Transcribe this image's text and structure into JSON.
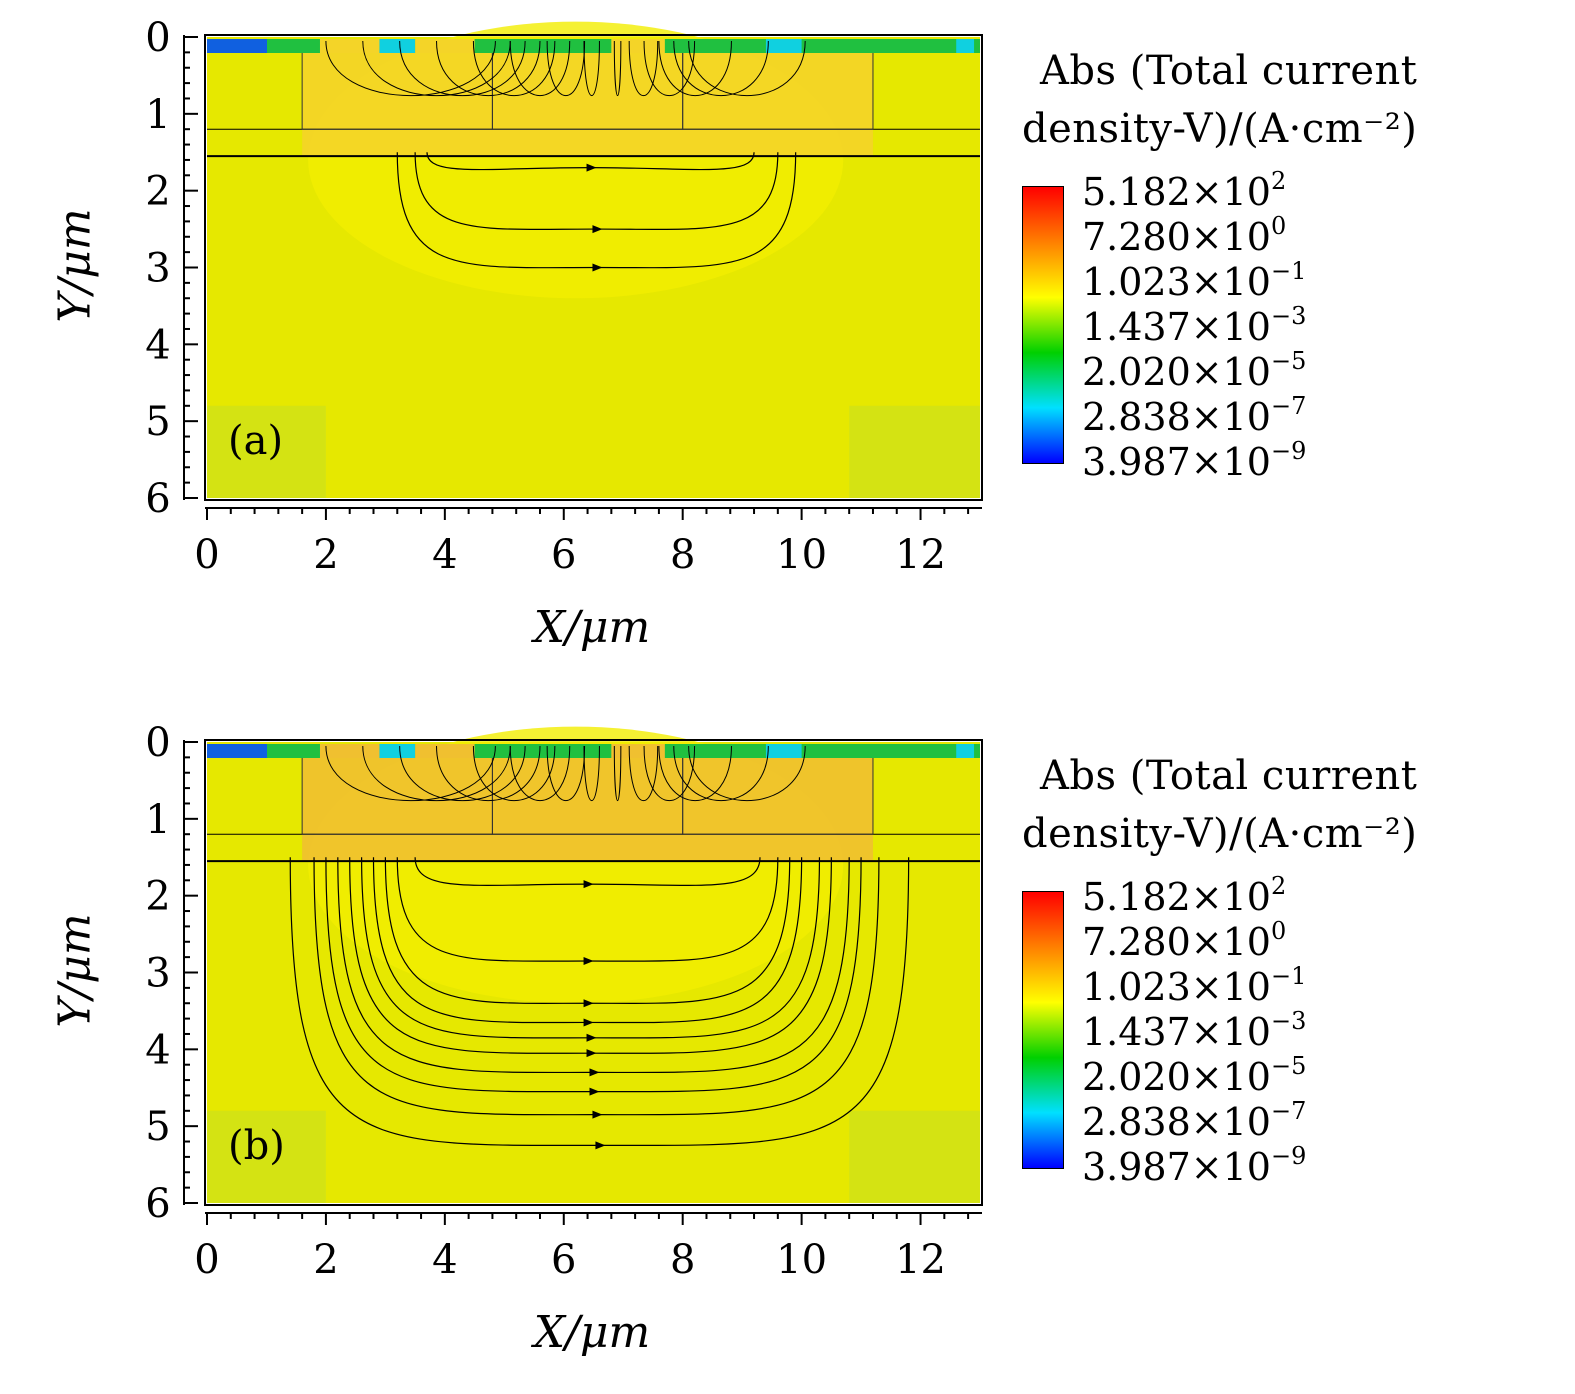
{
  "colorbar": {
    "title_line1": "Abs (Total current",
    "title_line2": "density-V)/(A·cm⁻²)",
    "colors": [
      "#ff0000",
      "#ff8000",
      "#ffff00",
      "#00d000",
      "#00e0ff",
      "#0000ff"
    ],
    "labels": [
      {
        "mantissa": "5.182×10",
        "exp": "2"
      },
      {
        "mantissa": "7.280×10",
        "exp": "0"
      },
      {
        "mantissa": "1.023×10",
        "exp": "−1"
      },
      {
        "mantissa": "1.437×10",
        "exp": "−3"
      },
      {
        "mantissa": "2.020×10",
        "exp": "−5"
      },
      {
        "mantissa": "2.838×10",
        "exp": "−7"
      },
      {
        "mantissa": "3.987×10",
        "exp": "−9"
      }
    ]
  },
  "chart_data": [
    {
      "type": "heatmap",
      "panel_label": "(a)",
      "xlabel": "X/μm",
      "ylabel": "Y/μm",
      "xlim": [
        0,
        13
      ],
      "ylim": [
        6,
        0
      ],
      "xticks": [
        0,
        2,
        4,
        6,
        8,
        10,
        12
      ],
      "yticks": [
        0,
        1,
        2,
        3,
        4,
        5,
        6
      ],
      "background_color": "#e6e800",
      "current_region_color": "#f4d428",
      "streamline_arcs": [
        {
          "x_left": 3.7,
          "x_right": 9.2,
          "y_bottom": 1.7
        },
        {
          "x_left": 3.5,
          "x_right": 9.6,
          "y_bottom": 2.5
        },
        {
          "x_left": 3.2,
          "x_right": 9.9,
          "y_bottom": 3.0
        }
      ],
      "layer_boundaries_y": [
        1.2,
        1.55
      ]
    },
    {
      "type": "heatmap",
      "panel_label": "(b)",
      "xlabel": "X/μm",
      "ylabel": "Y/μm",
      "xlim": [
        0,
        13
      ],
      "ylim": [
        6,
        0
      ],
      "xticks": [
        0,
        2,
        4,
        6,
        8,
        10,
        12
      ],
      "yticks": [
        0,
        1,
        2,
        3,
        4,
        5,
        6
      ],
      "background_color": "#e6e800",
      "current_region_color": "#f0c030",
      "streamline_arcs": [
        {
          "x_left": 3.5,
          "x_right": 9.3,
          "y_bottom": 1.85
        },
        {
          "x_left": 3.2,
          "x_right": 9.6,
          "y_bottom": 2.85
        },
        {
          "x_left": 3.0,
          "x_right": 9.8,
          "y_bottom": 3.4
        },
        {
          "x_left": 2.8,
          "x_right": 10.0,
          "y_bottom": 3.65
        },
        {
          "x_left": 2.6,
          "x_right": 10.3,
          "y_bottom": 3.85
        },
        {
          "x_left": 2.4,
          "x_right": 10.5,
          "y_bottom": 4.05
        },
        {
          "x_left": 2.2,
          "x_right": 10.8,
          "y_bottom": 4.3
        },
        {
          "x_left": 2.0,
          "x_right": 11.0,
          "y_bottom": 4.55
        },
        {
          "x_left": 1.8,
          "x_right": 11.3,
          "y_bottom": 4.85
        },
        {
          "x_left": 1.4,
          "x_right": 11.8,
          "y_bottom": 5.25
        }
      ],
      "layer_boundaries_y": [
        1.2,
        1.55
      ]
    }
  ]
}
